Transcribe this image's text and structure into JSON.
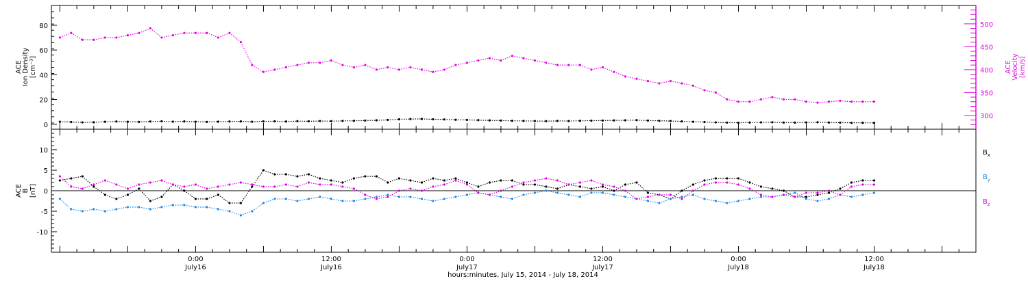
{
  "chart_data": [
    {
      "type": "scatter",
      "panel": "top",
      "left_axis": {
        "label_lines": [
          "ACE",
          "Ion Density",
          "[cm⁻³]"
        ],
        "ylim": [
          -4,
          96
        ],
        "ticks": [
          "0",
          "20",
          "40",
          "60",
          "80"
        ],
        "color": "#000000"
      },
      "right_axis": {
        "label_lines": [
          "ACE",
          "Velocity",
          "[km/s]"
        ],
        "ylim": [
          270,
          540
        ],
        "ticks": [
          "300",
          "350",
          "400",
          "450",
          "500"
        ],
        "color": "#e000e0"
      },
      "series": [
        {
          "axis": "left",
          "color": "#000000",
          "x_hours": [
            0,
            2,
            4,
            6,
            8,
            10,
            12,
            14,
            16,
            18,
            20,
            22,
            24,
            26,
            28,
            30,
            32,
            34,
            36,
            38,
            40,
            42,
            44,
            46,
            48,
            50,
            52,
            54,
            56,
            58,
            60,
            62,
            64,
            66,
            68,
            70,
            72,
            74,
            76,
            78,
            80,
            82,
            84,
            86,
            88,
            90,
            92,
            94,
            96,
            98,
            100,
            102,
            104,
            106,
            108,
            110,
            112,
            114,
            116,
            118,
            120,
            122,
            124,
            126,
            128,
            130,
            132,
            134,
            136,
            138,
            140,
            142,
            144
          ],
          "values": [
            2.0,
            1.8,
            1.5,
            1.6,
            2.0,
            2.2,
            2.0,
            1.9,
            2.2,
            2.4,
            2.1,
            2.3,
            2.0,
            1.9,
            2.1,
            2.2,
            2.3,
            2.0,
            2.3,
            2.4,
            2.2,
            2.5,
            2.4,
            2.6,
            2.5,
            2.7,
            2.8,
            3.0,
            3.2,
            3.5,
            4.0,
            4.2,
            4.3,
            4.0,
            3.9,
            3.6,
            3.5,
            3.3,
            3.1,
            3.0,
            2.8,
            2.7,
            2.6,
            2.5,
            2.7,
            2.6,
            2.8,
            2.9,
            3.0,
            3.1,
            3.2,
            3.3,
            3.0,
            2.8,
            2.6,
            2.3,
            2.0,
            1.8,
            1.5,
            1.3,
            1.2,
            1.4,
            1.5,
            1.6,
            1.4,
            1.3,
            1.5,
            1.6,
            1.4,
            1.3,
            1.2,
            1.2,
            1.1
          ]
        },
        {
          "axis": "right",
          "color": "#e000e0",
          "x_hours": [
            0,
            2,
            4,
            6,
            8,
            10,
            12,
            14,
            16,
            18,
            20,
            22,
            24,
            26,
            28,
            30,
            32,
            34,
            36,
            38,
            40,
            42,
            44,
            46,
            48,
            50,
            52,
            54,
            56,
            58,
            60,
            62,
            64,
            66,
            68,
            70,
            72,
            74,
            76,
            78,
            80,
            82,
            84,
            86,
            88,
            90,
            92,
            94,
            96,
            98,
            100,
            102,
            104,
            106,
            108,
            110,
            112,
            114,
            116,
            118,
            120,
            122,
            124,
            126,
            128,
            130,
            132,
            134,
            136,
            138,
            140,
            142,
            144
          ],
          "values": [
            470,
            480,
            465,
            465,
            470,
            470,
            475,
            480,
            490,
            470,
            475,
            480,
            480,
            480,
            470,
            480,
            460,
            410,
            395,
            400,
            405,
            410,
            415,
            415,
            420,
            410,
            405,
            410,
            400,
            405,
            400,
            405,
            400,
            395,
            400,
            410,
            415,
            420,
            425,
            420,
            430,
            425,
            420,
            415,
            410,
            410,
            410,
            400,
            405,
            395,
            385,
            380,
            375,
            370,
            375,
            370,
            365,
            355,
            350,
            335,
            330,
            330,
            335,
            340,
            335,
            335,
            330,
            328,
            330,
            332,
            330,
            330,
            330
          ]
        }
      ],
      "x_ticks": [
        {
          "x_hours": 24,
          "time": "0:00",
          "date": "July16"
        },
        {
          "x_hours": 48,
          "time": "12:00",
          "date": "July16"
        },
        {
          "x_hours": 72,
          "time": "0:00",
          "date": "July17"
        },
        {
          "x_hours": 96,
          "time": "12:00",
          "date": "July17"
        },
        {
          "x_hours": 120,
          "time": "0:00",
          "date": "July18"
        },
        {
          "x_hours": 144,
          "time": "12:00",
          "date": "July18"
        }
      ],
      "xlim_hours": [
        -1.5,
        162
      ]
    },
    {
      "type": "scatter",
      "panel": "bottom",
      "left_axis": {
        "label_lines": [
          "ACE",
          "B",
          "[nT]"
        ],
        "ylim": [
          -15,
          15
        ],
        "ticks": [
          "-10",
          "-5",
          "0",
          "5",
          "10"
        ],
        "color": "#000000"
      },
      "zero_line": true,
      "series": [
        {
          "name": "Bx",
          "color": "#000000",
          "x_hours": [
            0,
            2,
            4,
            6,
            8,
            10,
            12,
            14,
            16,
            18,
            20,
            22,
            24,
            26,
            28,
            30,
            32,
            34,
            36,
            38,
            40,
            42,
            44,
            46,
            48,
            50,
            52,
            54,
            56,
            58,
            60,
            62,
            64,
            66,
            68,
            70,
            72,
            74,
            76,
            78,
            80,
            82,
            84,
            86,
            88,
            90,
            92,
            94,
            96,
            98,
            100,
            102,
            104,
            106,
            108,
            110,
            112,
            114,
            116,
            118,
            120,
            122,
            124,
            126,
            128,
            130,
            132,
            134,
            136,
            138,
            140,
            142,
            144
          ],
          "values": [
            2.5,
            3.0,
            3.5,
            1.0,
            -1.0,
            -2.0,
            -1.0,
            0.5,
            -2.5,
            -1.5,
            1.5,
            0.0,
            -2.0,
            -2.0,
            -1.0,
            -3.0,
            -3.0,
            1.0,
            5.0,
            4.0,
            4.0,
            3.5,
            4.0,
            3.0,
            2.5,
            2.0,
            3.0,
            3.5,
            3.5,
            2.0,
            3.0,
            2.5,
            2.0,
            3.0,
            2.5,
            3.0,
            2.0,
            1.0,
            2.0,
            2.5,
            2.5,
            1.5,
            1.5,
            1.0,
            0.5,
            1.5,
            1.0,
            0.5,
            1.0,
            0.0,
            1.5,
            2.0,
            -0.5,
            -1.0,
            -2.0,
            0.0,
            1.5,
            2.5,
            3.0,
            3.0,
            3.0,
            2.0,
            1.0,
            0.5,
            0.0,
            -1.5,
            -1.5,
            -1.0,
            -0.5,
            0.5,
            2.0,
            2.5,
            2.5
          ]
        },
        {
          "name": "By",
          "color": "#1e88e5",
          "x_hours": [
            0,
            2,
            4,
            6,
            8,
            10,
            12,
            14,
            16,
            18,
            20,
            22,
            24,
            26,
            28,
            30,
            32,
            34,
            36,
            38,
            40,
            42,
            44,
            46,
            48,
            50,
            52,
            54,
            56,
            58,
            60,
            62,
            64,
            66,
            68,
            70,
            72,
            74,
            76,
            78,
            80,
            82,
            84,
            86,
            88,
            90,
            92,
            94,
            96,
            98,
            100,
            102,
            104,
            106,
            108,
            110,
            112,
            114,
            116,
            118,
            120,
            122,
            124,
            126,
            128,
            130,
            132,
            134,
            136,
            138,
            140,
            142,
            144
          ],
          "values": [
            -2.0,
            -4.5,
            -5.0,
            -4.5,
            -5.0,
            -4.5,
            -4.0,
            -4.0,
            -4.5,
            -4.0,
            -3.5,
            -3.5,
            -4.0,
            -4.0,
            -4.5,
            -5.0,
            -6.0,
            -5.0,
            -3.0,
            -2.0,
            -2.0,
            -2.5,
            -2.0,
            -1.5,
            -2.0,
            -2.5,
            -2.5,
            -2.0,
            -1.5,
            -1.0,
            -1.5,
            -1.5,
            -2.0,
            -2.5,
            -2.0,
            -1.5,
            -1.0,
            -0.5,
            -1.0,
            -1.5,
            -2.0,
            -1.0,
            -0.5,
            0.0,
            -0.5,
            -1.0,
            -1.5,
            -0.5,
            -0.5,
            -1.0,
            -1.5,
            -2.0,
            -2.5,
            -3.0,
            -2.0,
            -1.5,
            -1.0,
            -2.0,
            -2.5,
            -3.0,
            -2.5,
            -2.0,
            -1.5,
            -1.5,
            -1.0,
            -0.5,
            -2.0,
            -2.5,
            -2.0,
            -1.0,
            -1.5,
            -1.0,
            -0.5
          ]
        },
        {
          "name": "Bz",
          "color": "#e000e0",
          "x_hours": [
            0,
            2,
            4,
            6,
            8,
            10,
            12,
            14,
            16,
            18,
            20,
            22,
            24,
            26,
            28,
            30,
            32,
            34,
            36,
            38,
            40,
            42,
            44,
            46,
            48,
            50,
            52,
            54,
            56,
            58,
            60,
            62,
            64,
            66,
            68,
            70,
            72,
            74,
            76,
            78,
            80,
            82,
            84,
            86,
            88,
            90,
            92,
            94,
            96,
            98,
            100,
            102,
            104,
            106,
            108,
            110,
            112,
            114,
            116,
            118,
            120,
            122,
            124,
            126,
            128,
            130,
            132,
            134,
            136,
            138,
            140,
            142,
            144
          ],
          "values": [
            3.5,
            1.0,
            0.5,
            1.5,
            2.5,
            1.5,
            0.5,
            1.5,
            2.0,
            2.5,
            1.5,
            1.0,
            1.5,
            0.5,
            1.0,
            1.5,
            2.0,
            1.5,
            1.0,
            1.0,
            1.5,
            1.0,
            2.0,
            1.5,
            1.5,
            1.0,
            0.5,
            -1.0,
            -2.0,
            -1.5,
            0.0,
            0.5,
            0.0,
            1.0,
            1.5,
            2.5,
            1.5,
            -0.5,
            -1.0,
            0.0,
            1.0,
            2.0,
            2.5,
            3.0,
            2.5,
            1.5,
            2.0,
            2.5,
            1.5,
            1.0,
            0.0,
            -2.0,
            -1.5,
            -1.0,
            -1.0,
            -2.0,
            0.0,
            1.5,
            2.0,
            2.0,
            1.5,
            0.5,
            -1.0,
            -1.5,
            -1.0,
            -1.5,
            -0.5,
            -0.5,
            0.0,
            -1.0,
            1.0,
            1.5,
            1.5
          ]
        }
      ],
      "legend": [
        {
          "base": "B",
          "sub": "x",
          "color": "#000000"
        },
        {
          "base": "B",
          "sub": "y",
          "color": "#1e88e5"
        },
        {
          "base": "B",
          "sub": "z",
          "color": "#e000e0"
        }
      ]
    }
  ],
  "footer": {
    "caption": "hours:minutes, July 15, 2014 - July 18, 2014"
  }
}
